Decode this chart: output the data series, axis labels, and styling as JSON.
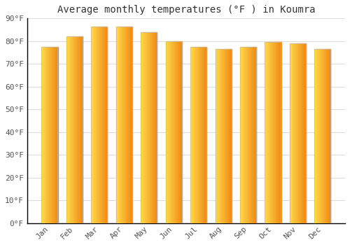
{
  "title": "Average monthly temperatures (°F ) in Koumra",
  "months": [
    "Jan",
    "Feb",
    "Mar",
    "Apr",
    "May",
    "Jun",
    "Jul",
    "Aug",
    "Sep",
    "Oct",
    "Nov",
    "Dec"
  ],
  "values": [
    77.5,
    82,
    86.5,
    86.5,
    84,
    80,
    77.5,
    76.5,
    77.5,
    79.5,
    79,
    76.5
  ],
  "bar_color_center": "#FFB300",
  "bar_color_left": "#FFD54F",
  "bar_color_right": "#FB8C00",
  "background_color": "#FFFFFF",
  "grid_color": "#DDDDDD",
  "ylim": [
    0,
    90
  ],
  "yticks": [
    0,
    10,
    20,
    30,
    40,
    50,
    60,
    70,
    80,
    90
  ],
  "title_fontsize": 10,
  "tick_fontsize": 8,
  "bar_edge_color": "#BBBBBB"
}
